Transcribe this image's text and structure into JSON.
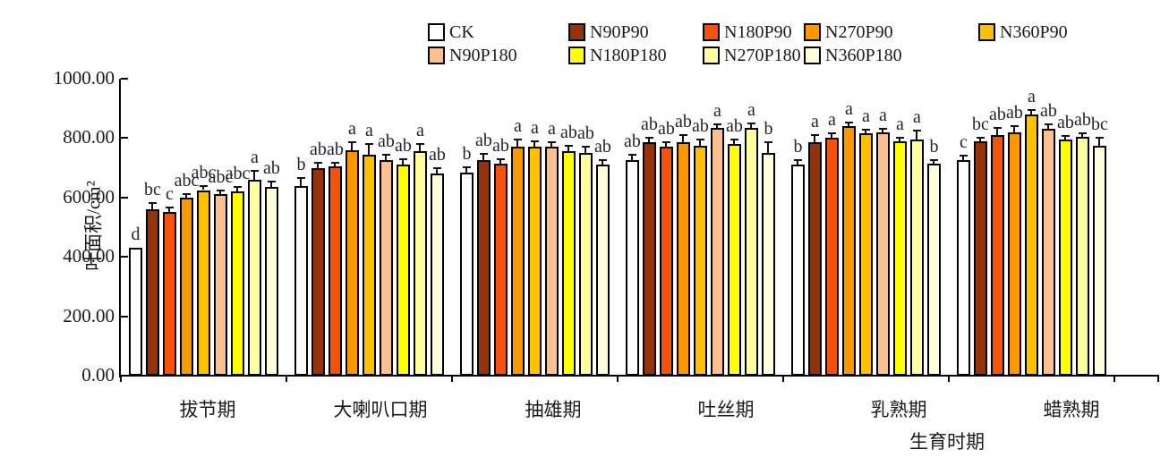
{
  "chart_data": {
    "type": "bar",
    "title": "",
    "ylabel": "叶面积/cm²",
    "xlabel": "生育时期",
    "ylim": [
      0,
      1000
    ],
    "y_tick_labels": [
      "0.00",
      "200.00",
      "400.00",
      "600.00",
      "800.00",
      "1000.00"
    ],
    "y_tick_values": [
      0,
      200,
      400,
      600,
      800,
      1000
    ],
    "grid": false,
    "legend_position": "top",
    "error_bars": true,
    "categories": [
      "拔节期",
      "大喇叭口期",
      "抽雄期",
      "吐丝期",
      "乳熟期",
      "蜡熟期"
    ],
    "series": [
      {
        "name": "CK",
        "color": "#FFFFFF",
        "values": [
          430,
          640,
          685,
          725,
          710,
          725
        ],
        "errors": [
          0,
          25,
          18,
          18,
          15,
          15
        ],
        "sig_letters": [
          "d",
          "b",
          "b",
          "ab",
          "b",
          "c"
        ]
      },
      {
        "name": "N90P90",
        "color": "#94330A",
        "values": [
          560,
          700,
          725,
          785,
          785,
          790
        ],
        "errors": [
          20,
          18,
          22,
          15,
          25,
          10
        ],
        "sig_letters": [
          "bc",
          "ab",
          "ab",
          "ab",
          "a",
          "bc"
        ]
      },
      {
        "name": "N180P90",
        "color": "#F4530B",
        "values": [
          550,
          705,
          715,
          770,
          800,
          810
        ],
        "errors": [
          15,
          12,
          15,
          15,
          15,
          25
        ],
        "sig_letters": [
          "c",
          "ab",
          "ab",
          "ab",
          "a",
          "ab"
        ]
      },
      {
        "name": "N270P90",
        "color": "#FB9800",
        "values": [
          600,
          760,
          770,
          785,
          840,
          820
        ],
        "errors": [
          12,
          25,
          25,
          25,
          12,
          20
        ],
        "sig_letters": [
          "abc",
          "a",
          "a",
          "ab",
          "a",
          "ab"
        ]
      },
      {
        "name": "N360P90",
        "color": "#FFC000",
        "values": [
          625,
          745,
          770,
          775,
          815,
          880
        ],
        "errors": [
          15,
          35,
          18,
          20,
          12,
          15
        ],
        "sig_letters": [
          "abc",
          "a",
          "a",
          "ab",
          "a",
          "a"
        ]
      },
      {
        "name": "N90P180",
        "color": "#FAC090",
        "values": [
          610,
          725,
          770,
          835,
          820,
          830
        ],
        "errors": [
          12,
          20,
          15,
          12,
          12,
          15
        ],
        "sig_letters": [
          "abc",
          "ab",
          "a",
          "a",
          "a",
          "ab"
        ]
      },
      {
        "name": "N180P180",
        "color": "#FFFF00",
        "values": [
          620,
          710,
          755,
          780,
          790,
          795
        ],
        "errors": [
          15,
          18,
          18,
          15,
          12,
          12
        ],
        "sig_letters": [
          "abc",
          "ab",
          "ab",
          "ab",
          "a",
          "ab"
        ]
      },
      {
        "name": "N270P180",
        "color": "#FFFF9E",
        "values": [
          660,
          755,
          750,
          835,
          795,
          805
        ],
        "errors": [
          30,
          25,
          20,
          15,
          30,
          10
        ],
        "sig_letters": [
          "a",
          "a",
          "ab",
          "a",
          "a",
          "ab"
        ]
      },
      {
        "name": "N360P180",
        "color": "#FFFFDC",
        "values": [
          635,
          680,
          710,
          750,
          715,
          775
        ],
        "errors": [
          18,
          20,
          15,
          35,
          12,
          25
        ],
        "sig_letters": [
          "ab",
          "ab",
          "ab",
          "b",
          "b",
          "bc"
        ]
      }
    ]
  }
}
